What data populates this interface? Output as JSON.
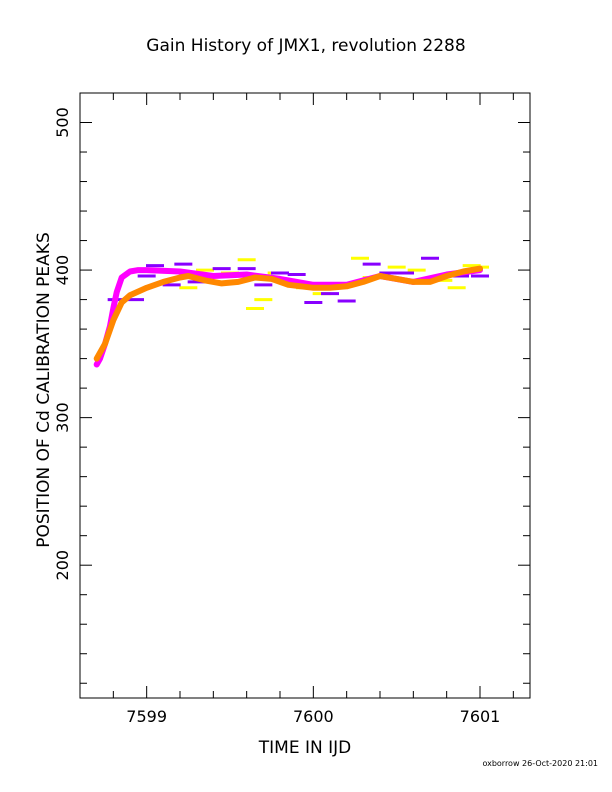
{
  "chart_data": {
    "type": "scatter",
    "title": "Gain History of JMX1, revolution 2288",
    "xlabel": "TIME IN IJD",
    "ylabel": "POSITION OF Cd CALIBRATION PEAKS",
    "xlim": [
      7598.6,
      7601.3
    ],
    "ylim": [
      110,
      520
    ],
    "x_ticks": [
      7599,
      7600,
      7601
    ],
    "y_ticks": [
      200,
      300,
      400,
      500
    ],
    "grid": false,
    "series": [
      {
        "color": "#ffff00",
        "style": "dashes",
        "points": [
          [
            7599.25,
            388
          ],
          [
            7599.35,
            400
          ],
          [
            7599.5,
            398
          ],
          [
            7599.6,
            407
          ],
          [
            7599.65,
            374
          ],
          [
            7599.7,
            380
          ],
          [
            7599.78,
            398
          ],
          [
            7599.95,
            388
          ],
          [
            7600.05,
            384
          ],
          [
            7600.15,
            390
          ],
          [
            7600.28,
            408
          ],
          [
            7600.35,
            395
          ],
          [
            7600.5,
            402
          ],
          [
            7600.62,
            400
          ],
          [
            7600.78,
            393
          ],
          [
            7600.86,
            388
          ],
          [
            7600.95,
            403
          ],
          [
            7601.0,
            402
          ]
        ]
      },
      {
        "color": "#8800ff",
        "style": "dashes",
        "points": [
          [
            7598.82,
            380
          ],
          [
            7598.93,
            380
          ],
          [
            7599.0,
            396
          ],
          [
            7599.05,
            403
          ],
          [
            7599.15,
            390
          ],
          [
            7599.22,
            404
          ],
          [
            7599.3,
            392
          ],
          [
            7599.45,
            401
          ],
          [
            7599.6,
            401
          ],
          [
            7599.7,
            390
          ],
          [
            7599.8,
            398
          ],
          [
            7599.9,
            397
          ],
          [
            7600.0,
            378
          ],
          [
            7600.1,
            384
          ],
          [
            7600.2,
            379
          ],
          [
            7600.35,
            404
          ],
          [
            7600.45,
            398
          ],
          [
            7600.55,
            398
          ],
          [
            7600.7,
            408
          ],
          [
            7600.88,
            396
          ],
          [
            7601.0,
            396
          ]
        ]
      },
      {
        "color": "#ff00ff",
        "style": "curve",
        "points": [
          [
            7598.7,
            336
          ],
          [
            7598.72,
            340
          ],
          [
            7598.75,
            350
          ],
          [
            7598.78,
            362
          ],
          [
            7598.8,
            374
          ],
          [
            7598.82,
            385
          ],
          [
            7598.85,
            395
          ],
          [
            7598.9,
            399
          ],
          [
            7598.95,
            400
          ],
          [
            7599.0,
            400
          ],
          [
            7599.2,
            399
          ],
          [
            7599.4,
            396
          ],
          [
            7599.6,
            397
          ],
          [
            7599.8,
            394
          ],
          [
            7600.0,
            390
          ],
          [
            7600.2,
            390
          ],
          [
            7600.4,
            396
          ],
          [
            7600.6,
            392
          ],
          [
            7600.8,
            397
          ],
          [
            7601.0,
            400
          ]
        ]
      },
      {
        "color": "#ff8800",
        "style": "curve",
        "points": [
          [
            7598.7,
            340
          ],
          [
            7598.75,
            350
          ],
          [
            7598.8,
            366
          ],
          [
            7598.85,
            378
          ],
          [
            7598.9,
            383
          ],
          [
            7599.0,
            388
          ],
          [
            7599.1,
            392
          ],
          [
            7599.2,
            395
          ],
          [
            7599.25,
            396
          ],
          [
            7599.35,
            393
          ],
          [
            7599.45,
            391
          ],
          [
            7599.55,
            392
          ],
          [
            7599.65,
            395
          ],
          [
            7599.75,
            394
          ],
          [
            7599.85,
            390
          ],
          [
            7600.0,
            388
          ],
          [
            7600.1,
            388
          ],
          [
            7600.2,
            389
          ],
          [
            7600.3,
            392
          ],
          [
            7600.4,
            396
          ],
          [
            7600.5,
            394
          ],
          [
            7600.6,
            392
          ],
          [
            7600.7,
            392
          ],
          [
            7600.8,
            396
          ],
          [
            7600.9,
            399
          ],
          [
            7601.0,
            401
          ]
        ]
      }
    ]
  },
  "footer": "oxborrow 26-Oct-2020 21:01"
}
